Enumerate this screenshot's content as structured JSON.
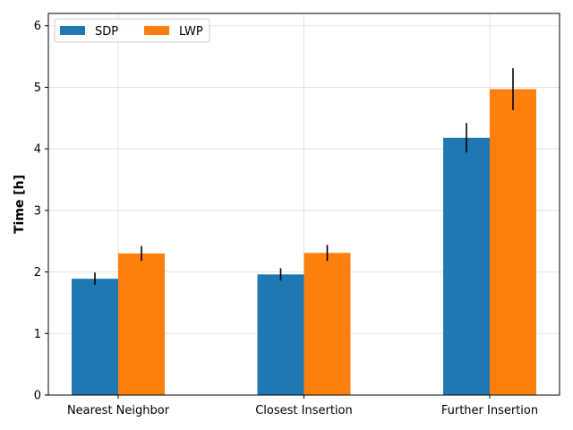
{
  "chart_data": {
    "type": "bar",
    "categories": [
      "Nearest Neighbor",
      "Closest Insertion",
      "Further Insertion"
    ],
    "series": [
      {
        "name": "SDP",
        "values": [
          1.89,
          1.96,
          4.18
        ],
        "errors": [
          0.1,
          0.1,
          0.24
        ],
        "color": "#1f77b4"
      },
      {
        "name": "LWP",
        "values": [
          2.3,
          2.31,
          4.97
        ],
        "errors": [
          0.12,
          0.13,
          0.34
        ],
        "color": "#ff7f0e"
      }
    ],
    "ylabel": "Time [h]",
    "xlabel": "",
    "ylim": [
      0,
      6.2
    ],
    "yticks": [
      0,
      1,
      2,
      3,
      4,
      5,
      6
    ],
    "ytick_labels": [
      "0",
      "1",
      "2",
      "3",
      "4",
      "5",
      "6"
    ],
    "grid": true,
    "legend_position": "upper-left",
    "legend_columns": 2
  }
}
